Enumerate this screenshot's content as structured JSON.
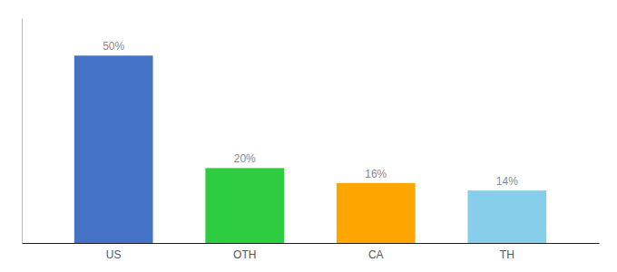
{
  "chart_data": {
    "type": "bar",
    "categories": [
      "US",
      "OTH",
      "CA",
      "TH"
    ],
    "values": [
      50,
      20,
      16,
      14
    ],
    "value_labels": [
      "50%",
      "20%",
      "16%",
      "14%"
    ],
    "colors": [
      "#4472C4",
      "#2ECC40",
      "#FFA500",
      "#87CEEB"
    ],
    "ylim": [
      0,
      60
    ],
    "data_labels": true,
    "tick_labels": "x",
    "grid": false
  }
}
